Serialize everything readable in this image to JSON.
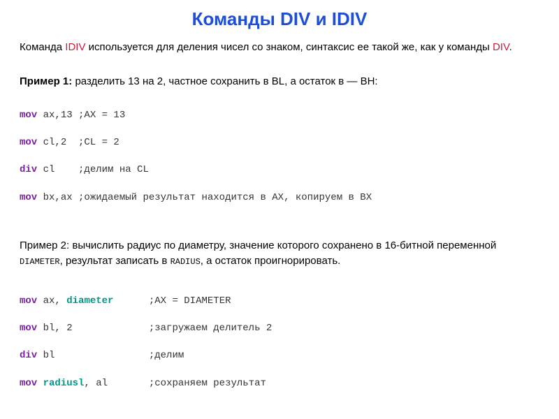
{
  "title": "Команды DIV и IDIV",
  "intro": {
    "part1": "Команда ",
    "idiv": "IDIV",
    "part2": " используется для деления чисел со знаком, синтаксис ее такой же, как у команды ",
    "div": "DIV",
    "part3": "."
  },
  "example1": {
    "label": "Пример 1:",
    "text": " разделить 13 на 2, частное сохранить в BL, а остаток в — BH:",
    "code": {
      "l1_kw": "mov",
      "l1_rest": " ax,13 ;AX = 13",
      "l2_kw": "mov",
      "l2_rest": " cl,2  ;CL = 2",
      "l3_kw": "div",
      "l3_rest": " cl    ;делим на CL",
      "l4_kw": "mov",
      "l4_rest": " bx,ax ;ожидаемый результат находится в АХ, копируем в BХ"
    }
  },
  "example2": {
    "label": "Пример 2:",
    "text_p1": " вычислить радиус по диаметру, значение которого сохранено в 16-битной переменной ",
    "diameter": "DIAMETER",
    "text_p2": ", результат записать в ",
    "radius": "RADIUS",
    "text_p3": ", а остаток проигнорировать.",
    "code": {
      "l1_kw": "mov",
      "l1_mid": " ax, ",
      "l1_kw2": "diameter",
      "l1_pad": "      ",
      "l1_cmt": ";AX = DIAMETER",
      "l2_kw": "mov",
      "l2_rest": " bl, 2             ;загружаем делитель 2",
      "l3_kw": "div",
      "l3_rest": " bl                ;делим",
      "l4_kw": "mov",
      "l4_mid": " ",
      "l4_kw2": "radiusl",
      "l4_mid2": ", al       ",
      "l4_cmt": ";сохраняем результат"
    }
  },
  "colors": {
    "title_blue": "#1d4ed8",
    "keyword_red": "#c41e3a",
    "keyword_purple": "#7b1fa2",
    "keyword_teal": "#009688",
    "text_black": "#333333",
    "background": "#ffffff"
  },
  "typography": {
    "title_fontsize": 26,
    "body_fontsize": 15,
    "code_fontsize": 14,
    "mono_small": 12
  }
}
